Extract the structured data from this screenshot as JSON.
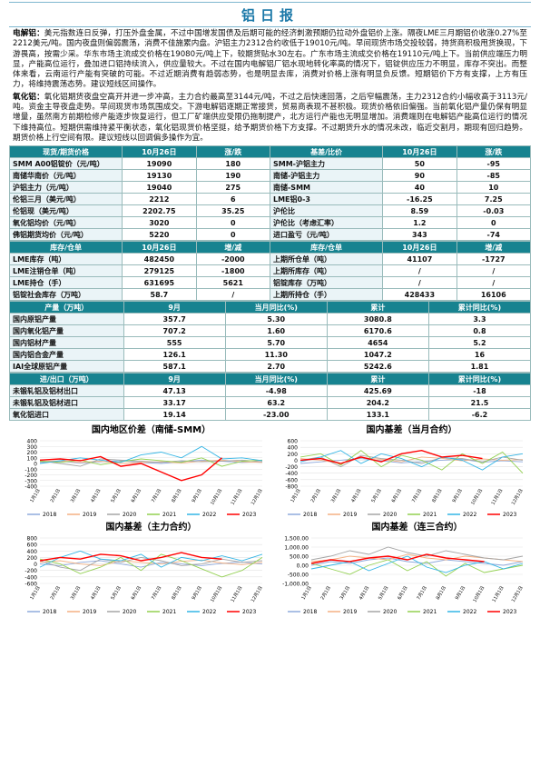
{
  "header": {
    "title": "铝日报"
  },
  "paragraphs": [
    {
      "label": "电解铝：",
      "text": "美元指数连日反弹，打压外盘金属，不过中国增发国债及后期可能的经济刺激预期仍拉动外盘铝价上涨。隔夜LME三月期铝价收涨0.27%至2212美元/吨。国内夜盘则偏弱震荡，消费不佳施累内盘。沪铝主力2312合约收低于19010元/吨。早间现货市场交投较弱，持货商积极甩货换现，下游畏高，按需少采。华东市场主流成交价格在19080元/吨上下，较期货贴水30左右。广东市场主流成交价格在19110元/吨上下。当前供应端压力明显，产能高位运行，叠加进口铝持续流入，供应量较大。不过在国内电解铝厂铝水现地转化率高的情况下，铝锭供应压力不明显，库存不突出。而整体来看，云南运行产能有突破的可能。不过近期消费有趋弱态势，也是明显去库，消费对价格上涨有明显负反馈。短期铝价下方有支撑，上方有压力，将维持震荡态势。建议短线区间操作。"
    },
    {
      "label": "氧化铝：",
      "text": "氧化铝期货夜盘空高开并进一步冲高，主力合约最高至3144元/吨，不过之后快速回落，之后窄幅震荡，主力2312合约小幅收高于3113元/吨。资金主导夜盘走势。早间现货市场氛围成交。下游电解铝逐期正常接货，贸易商表现不甚积极。现货价格依旧偏强。当前氧化铝产量仍保有明显增量，虽然南方前期检修产能逐步恢复运行，但工厂矿端供应受限仍拖制提产，北方运行产能也无明显增加。消费端则在电解铝产能高位运行的情况下维持高位。短期供需维持紧平衡状态，氧化铝现货价格坚挺，给予期货价格下方支撑。不过期货升水的情况未改，临近交割月，期现有回归趋势。期货价格上行空间有限。建议短线以回调偏多操作为宜。"
    }
  ],
  "tables": [
    {
      "rows": [
        [
          "现货/期货价格",
          "10月26日",
          "涨/跌",
          "基差/比价",
          "10月26日",
          "涨/跌"
        ],
        [
          "SMM A00铝锭价（元/吨）",
          "19090",
          "180",
          "SMM-沪铝主力",
          "50",
          "-95"
        ],
        [
          "南储华南价（元/吨）",
          "19130",
          "190",
          "南储-沪铝主力",
          "90",
          "-85"
        ],
        [
          "沪铝主力（元/吨）",
          "19040",
          "275",
          "南储-SMM",
          "40",
          "10"
        ],
        [
          "伦铝三月（美元/吨）",
          "2212",
          "6",
          "LME铝0-3",
          "-16.25",
          "7.25"
        ],
        [
          "伦铝现（美元/吨）",
          "2202.75",
          "35.25",
          "沪伦比",
          "8.59",
          "-0.03"
        ],
        [
          "氧化铝均价（元/吨）",
          "3020",
          "0",
          "沪伦比（考虑汇率）",
          "1.2",
          "0"
        ],
        [
          "佛铝期货均价（元/吨）",
          "5220",
          "0",
          "进口盈亏（元/吨）",
          "343",
          "-74"
        ]
      ]
    },
    {
      "rows": [
        [
          "库存/仓单",
          "10月26日",
          "增/减",
          "库存/仓单",
          "10月26日",
          "增/减"
        ],
        [
          "LME库存（吨）",
          "482450",
          "-2000",
          "上期所仓单（吨）",
          "41107",
          "-1727"
        ],
        [
          "LME注销仓单（吨）",
          "279125",
          "-1800",
          "上期所库存（吨）",
          "/",
          "/"
        ],
        [
          "LME持仓（手）",
          "631695",
          "5621",
          "铝锭库存（万吨）",
          "/",
          "/"
        ],
        [
          "铝锭社会库存（万吨）",
          "58.7",
          "/",
          "上期所持仓（手）",
          "428433",
          "16106"
        ]
      ]
    },
    {
      "rows": [
        [
          "产量（万吨）",
          "9月",
          "当月同比(%)",
          "累计",
          "累计同比(%)"
        ],
        [
          "国内原铝产量",
          "357.7",
          "5.30",
          "3080.8",
          "3.3"
        ],
        [
          "国内氧化铝产量",
          "707.2",
          "1.60",
          "6170.6",
          "0.8"
        ],
        [
          "国内铝材产量",
          "555",
          "5.70",
          "4654",
          "5.2"
        ],
        [
          "国内铝合金产量",
          "126.1",
          "11.30",
          "1047.2",
          "16"
        ],
        [
          "IAI全球原铝产量",
          "587.1",
          "2.70",
          "5242.6",
          "1.81"
        ]
      ]
    },
    {
      "rows": [
        [
          "进/出口（万吨）",
          "9月",
          "当月同比(%)",
          "累计",
          "累计同比(%)"
        ],
        [
          "未锻轧铝及铝材出口",
          "47.13",
          "-4.98",
          "425.69",
          "-18"
        ],
        [
          "未锻轧铝及铝材进口",
          "33.17",
          "63.2",
          "204.2",
          "21.5"
        ],
        [
          "氧化铝进口",
          "19.14",
          "-23.00",
          "133.1",
          "-6.2"
        ]
      ]
    }
  ],
  "chart_data": [
    {
      "type": "line",
      "title": "国内地区价差（南储-SMM）",
      "categories": [
        "1月1日",
        "2月1日",
        "3月1日",
        "4月1日",
        "5月1日",
        "6月1日",
        "7月1日",
        "8月1日",
        "9月1日",
        "10月1日",
        "11月1日",
        "12月1日"
      ],
      "ylim": [
        -400,
        400
      ],
      "yticks": [
        400,
        300,
        200,
        100,
        0,
        -100,
        -200,
        -300,
        -400
      ],
      "series": [
        {
          "name": "2018",
          "color": "#8faadc",
          "values": [
            20,
            40,
            10,
            30,
            50,
            20,
            0,
            30,
            60,
            40,
            20,
            30
          ]
        },
        {
          "name": "2019",
          "color": "#f4b183",
          "values": [
            30,
            50,
            20,
            40,
            0,
            20,
            30,
            10,
            40,
            60,
            30,
            20
          ]
        },
        {
          "name": "2020",
          "color": "#a5a5a5",
          "values": [
            50,
            0,
            -50,
            80,
            60,
            40,
            20,
            50,
            30,
            40,
            60,
            30
          ]
        },
        {
          "name": "2021",
          "color": "#92d050",
          "values": [
            40,
            20,
            60,
            -20,
            30,
            80,
            50,
            20,
            100,
            -50,
            40,
            60
          ]
        },
        {
          "name": "2022",
          "color": "#33b5e5",
          "values": [
            0,
            50,
            100,
            60,
            20,
            150,
            200,
            100,
            300,
            80,
            100,
            50
          ]
        },
        {
          "name": "2023",
          "color": "#ff0000",
          "values": [
            60,
            80,
            50,
            120,
            -50,
            0,
            -150,
            -300,
            -200,
            100,
            null,
            null
          ]
        }
      ]
    },
    {
      "type": "line",
      "title": "国内基差（当月合约）",
      "categories": [
        "1月1日",
        "2月1日",
        "3月1日",
        "4月1日",
        "5月1日",
        "6月1日",
        "7月1日",
        "8月1日",
        "9月1日",
        "10月1日",
        "11月1日",
        "12月1日"
      ],
      "ylim": [
        -800,
        600
      ],
      "yticks": [
        600,
        400,
        200,
        0,
        -200,
        -400,
        -600,
        -800
      ],
      "series": [
        {
          "name": "2018",
          "color": "#8faadc",
          "values": [
            -100,
            -50,
            0,
            50,
            -20,
            -80,
            -40,
            0,
            30,
            -60,
            -20,
            -50
          ]
        },
        {
          "name": "2019",
          "color": "#f4b183",
          "values": [
            50,
            0,
            -100,
            80,
            30,
            -50,
            100,
            60,
            -20,
            40,
            0,
            20
          ]
        },
        {
          "name": "2020",
          "color": "#a5a5a5",
          "values": [
            0,
            100,
            -200,
            150,
            50,
            0,
            -100,
            80,
            50,
            -50,
            100,
            0
          ]
        },
        {
          "name": "2021",
          "color": "#92d050",
          "values": [
            100,
            200,
            -150,
            300,
            -200,
            150,
            0,
            -300,
            200,
            -100,
            250,
            -400
          ]
        },
        {
          "name": "2022",
          "color": "#33b5e5",
          "values": [
            -50,
            100,
            300,
            -100,
            200,
            50,
            -200,
            100,
            0,
            -300,
            100,
            200
          ]
        },
        {
          "name": "2023",
          "color": "#ff0000",
          "values": [
            0,
            50,
            -100,
            100,
            -50,
            200,
            300,
            100,
            150,
            50,
            null,
            null
          ]
        }
      ]
    },
    {
      "type": "line",
      "title": "国内基差（主力合约）",
      "categories": [
        "1月1日",
        "2月1日",
        "3月1日",
        "4月1日",
        "5月1日",
        "6月1日",
        "7月1日",
        "8月1日",
        "9月1日",
        "10月1日",
        "11月1日",
        "12月1日"
      ],
      "ylim": [
        -600,
        800
      ],
      "yticks": [
        800,
        600,
        400,
        200,
        0,
        -200,
        -400,
        -600
      ],
      "series": [
        {
          "name": "2018",
          "color": "#8faadc",
          "values": [
            0,
            -50,
            50,
            100,
            0,
            -100,
            50,
            0,
            -50,
            20,
            60,
            0
          ]
        },
        {
          "name": "2019",
          "color": "#f4b183",
          "values": [
            50,
            100,
            0,
            -50,
            100,
            50,
            0,
            80,
            120,
            30,
            -20,
            50
          ]
        },
        {
          "name": "2020",
          "color": "#a5a5a5",
          "values": [
            100,
            -100,
            -200,
            150,
            50,
            200,
            100,
            -50,
            0,
            150,
            50,
            100
          ]
        },
        {
          "name": "2021",
          "color": "#92d050",
          "values": [
            150,
            0,
            -300,
            -100,
            200,
            -200,
            300,
            100,
            -150,
            -400,
            -200,
            200
          ]
        },
        {
          "name": "2022",
          "color": "#33b5e5",
          "values": [
            -100,
            200,
            400,
            150,
            100,
            300,
            -100,
            200,
            100,
            250,
            100,
            300
          ]
        },
        {
          "name": "2023",
          "color": "#ff0000",
          "values": [
            100,
            200,
            150,
            300,
            250,
            100,
            200,
            350,
            200,
            150,
            null,
            null
          ]
        }
      ]
    },
    {
      "type": "line",
      "title": "国内基差（连三合约）",
      "categories": [
        "1月1日",
        "2月1日",
        "3月1日",
        "4月1日",
        "5月1日",
        "6月1日",
        "7月1日",
        "8月1日",
        "9月1日",
        "10月1日",
        "11月1日",
        "12月1日"
      ],
      "ylim": [
        -1000,
        1500
      ],
      "yticks": [
        {
          "value": 1500,
          "label": "1,500.00"
        },
        {
          "value": 1000,
          "label": "1,000.00"
        },
        {
          "value": 500,
          "label": "500.00"
        },
        {
          "value": 0,
          "label": "0.00"
        },
        {
          "value": -500,
          "label": "-500.00"
        },
        {
          "value": -1000,
          "label": "-1,000.00"
        }
      ],
      "series": [
        {
          "name": "2018",
          "color": "#8faadc",
          "values": [
            0,
            200,
            100,
            300,
            400,
            200,
            100,
            300,
            200,
            100,
            0,
            200
          ]
        },
        {
          "name": "2019",
          "color": "#f4b183",
          "values": [
            200,
            300,
            500,
            400,
            300,
            600,
            400,
            300,
            500,
            400,
            300,
            200
          ]
        },
        {
          "name": "2020",
          "color": "#a5a5a5",
          "values": [
            300,
            500,
            800,
            600,
            1000,
            700,
            500,
            800,
            600,
            400,
            300,
            500
          ]
        },
        {
          "name": "2021",
          "color": "#92d050",
          "values": [
            100,
            -200,
            -500,
            0,
            300,
            -300,
            200,
            -600,
            100,
            -400,
            -200,
            0
          ]
        },
        {
          "name": "2022",
          "color": "#33b5e5",
          "values": [
            -200,
            0,
            200,
            -300,
            100,
            500,
            -100,
            -400,
            0,
            200,
            -200,
            100
          ]
        },
        {
          "name": "2023",
          "color": "#ff0000",
          "values": [
            100,
            300,
            200,
            400,
            500,
            300,
            600,
            400,
            300,
            200,
            null,
            null
          ]
        }
      ]
    }
  ]
}
